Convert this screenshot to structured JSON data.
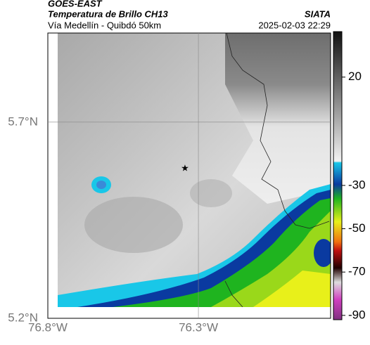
{
  "header": {
    "source": "GOES-EAST",
    "title": "Temperatura de Brillo CH13",
    "subtitle": "Vía Medellín - Quibdó 50km",
    "org": "SIATA",
    "datetime": "2025-02-03 22:29"
  },
  "map": {
    "xlim": [
      -76.8,
      -75.861
    ],
    "ylim": [
      5.2,
      5.927
    ],
    "lon_ticks": [
      {
        "value": -76.8,
        "label": "76.8°W"
      },
      {
        "value": -76.3,
        "label": "76.3°W"
      }
    ],
    "lat_ticks": [
      {
        "value": 5.7,
        "label": "5.7°N"
      },
      {
        "value": 5.2,
        "label": "5.2°N"
      }
    ]
  },
  "colorbar": {
    "lim": [
      -92,
      41
    ],
    "ticks": [
      20,
      -30,
      -50,
      -70,
      -90
    ]
  }
}
